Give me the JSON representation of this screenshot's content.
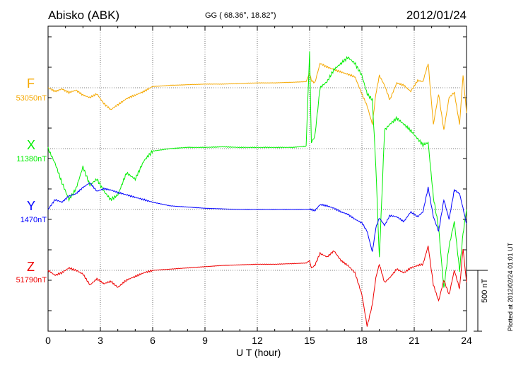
{
  "header": {
    "station": "Abisko (ABK)",
    "coords": "GG ( 68.36°,  18.82°)",
    "date": "2012/01/24"
  },
  "footer": {
    "scale_label": "500 nT",
    "plotted": "Plotted at 2012/02/24 01:01 UT"
  },
  "chart_data": {
    "type": "line",
    "title": "Abisko (ABK)",
    "xlabel": "U T (hour)",
    "xlim": [
      0,
      24
    ],
    "xticks": [
      "0",
      "3",
      "6",
      "9",
      "12",
      "15",
      "18",
      "21",
      "24"
    ],
    "grid": true,
    "scale_bar_nT": 500,
    "series": [
      {
        "name": "F",
        "baseline": "53050nT",
        "color": "#f5a800",
        "baseline_value": 53050,
        "x": [
          0,
          0.4,
          0.8,
          1.2,
          1.6,
          2.0,
          2.4,
          2.8,
          3.2,
          3.6,
          4.0,
          4.5,
          5.0,
          5.5,
          6.0,
          7,
          8,
          9,
          10,
          11,
          12,
          13,
          14,
          14.8,
          15.0,
          15.1,
          15.3,
          15.6,
          16.0,
          16.4,
          16.8,
          17.2,
          17.6,
          18.0,
          18.3,
          18.6,
          18.8,
          19.0,
          19.3,
          19.6,
          20.0,
          20.4,
          20.8,
          21.2,
          21.5,
          21.8,
          22.1,
          22.4,
          22.7,
          23.0,
          23.3,
          23.6,
          23.8,
          24.0
        ],
        "values": [
          0,
          -30,
          -10,
          -40,
          -20,
          -60,
          -80,
          -50,
          -130,
          -180,
          -140,
          -90,
          -60,
          -30,
          10,
          20,
          25,
          30,
          30,
          35,
          40,
          40,
          45,
          50,
          120,
          60,
          40,
          200,
          170,
          150,
          130,
          110,
          90,
          -50,
          -150,
          -300,
          -50,
          100,
          20,
          -100,
          40,
          20,
          -30,
          60,
          50,
          200,
          -300,
          -50,
          -350,
          -80,
          -40,
          -300,
          100,
          -200
        ]
      },
      {
        "name": "X",
        "baseline": "11380nT",
        "color": "#00ee00",
        "baseline_value": 11380,
        "x": [
          0,
          0.4,
          0.8,
          1.2,
          1.6,
          2.0,
          2.4,
          2.8,
          3.2,
          3.6,
          4.0,
          4.5,
          5.0,
          5.5,
          6.0,
          7,
          8,
          9,
          10,
          11,
          12,
          13,
          14,
          14.8,
          15.0,
          15.1,
          15.3,
          15.6,
          16.0,
          16.4,
          16.8,
          17.2,
          17.6,
          18.0,
          18.3,
          18.6,
          18.8,
          19.0,
          19.3,
          19.6,
          20.0,
          20.4,
          20.8,
          21.2,
          21.5,
          21.8,
          22.1,
          22.4,
          22.7,
          23.0,
          23.3,
          23.6,
          23.8,
          24.0
        ],
        "values": [
          0,
          -120,
          -280,
          -420,
          -330,
          -150,
          -300,
          -250,
          -350,
          -420,
          -380,
          -200,
          -250,
          -100,
          -20,
          0,
          10,
          10,
          15,
          10,
          10,
          10,
          10,
          20,
          800,
          50,
          100,
          500,
          550,
          650,
          700,
          750,
          700,
          600,
          450,
          400,
          -150,
          -900,
          150,
          200,
          250,
          200,
          150,
          80,
          30,
          50,
          -400,
          -650,
          -1150,
          -800,
          -600,
          -1000,
          -700,
          -500
        ]
      },
      {
        "name": "Y",
        "baseline": "1470nT",
        "color": "#0000ff",
        "baseline_value": 1470,
        "x": [
          0,
          0.4,
          0.8,
          1.2,
          1.6,
          2.0,
          2.4,
          2.8,
          3.2,
          3.6,
          4.0,
          4.5,
          5.0,
          5.5,
          6.0,
          7,
          8,
          9,
          10,
          11,
          12,
          13,
          14,
          14.8,
          15.0,
          15.1,
          15.3,
          15.6,
          16.0,
          16.4,
          16.8,
          17.2,
          17.6,
          18.0,
          18.3,
          18.6,
          18.8,
          19.0,
          19.3,
          19.6,
          20.0,
          20.4,
          20.8,
          21.2,
          21.5,
          21.8,
          22.1,
          22.4,
          22.7,
          23.0,
          23.3,
          23.6,
          23.8,
          24.0
        ],
        "values": [
          0,
          80,
          60,
          110,
          130,
          180,
          220,
          150,
          170,
          160,
          140,
          120,
          100,
          80,
          60,
          30,
          20,
          10,
          5,
          0,
          0,
          0,
          0,
          0,
          0,
          0,
          -10,
          40,
          30,
          10,
          -20,
          -40,
          -80,
          -110,
          -180,
          -350,
          -150,
          -70,
          -130,
          -50,
          -60,
          -100,
          -20,
          -60,
          -20,
          180,
          -60,
          -180,
          80,
          -80,
          160,
          130,
          10,
          -120
        ]
      },
      {
        "name": "Z",
        "baseline": "51790nT",
        "color": "#ee0000",
        "baseline_value": 51790,
        "x": [
          0,
          0.4,
          0.8,
          1.2,
          1.6,
          2.0,
          2.4,
          2.8,
          3.2,
          3.6,
          4.0,
          4.5,
          5.0,
          5.5,
          6.0,
          7,
          8,
          9,
          10,
          11,
          12,
          13,
          14,
          14.8,
          15.0,
          15.1,
          15.3,
          15.6,
          16.0,
          16.4,
          16.8,
          17.2,
          17.6,
          18.0,
          18.3,
          18.6,
          18.8,
          19.0,
          19.3,
          19.6,
          20.0,
          20.4,
          20.8,
          21.2,
          21.5,
          21.8,
          22.1,
          22.4,
          22.7,
          23.0,
          23.3,
          23.6,
          23.8,
          24.0
        ],
        "values": [
          0,
          -40,
          -20,
          20,
          0,
          -30,
          -120,
          -70,
          -110,
          -90,
          -140,
          -80,
          -50,
          -20,
          0,
          10,
          20,
          30,
          40,
          45,
          50,
          50,
          55,
          60,
          80,
          20,
          40,
          140,
          110,
          160,
          80,
          40,
          -20,
          -200,
          -460,
          -280,
          -60,
          50,
          -100,
          -60,
          10,
          -20,
          20,
          40,
          50,
          200,
          -120,
          -250,
          -80,
          -200,
          0,
          -150,
          180,
          -100
        ]
      }
    ]
  }
}
